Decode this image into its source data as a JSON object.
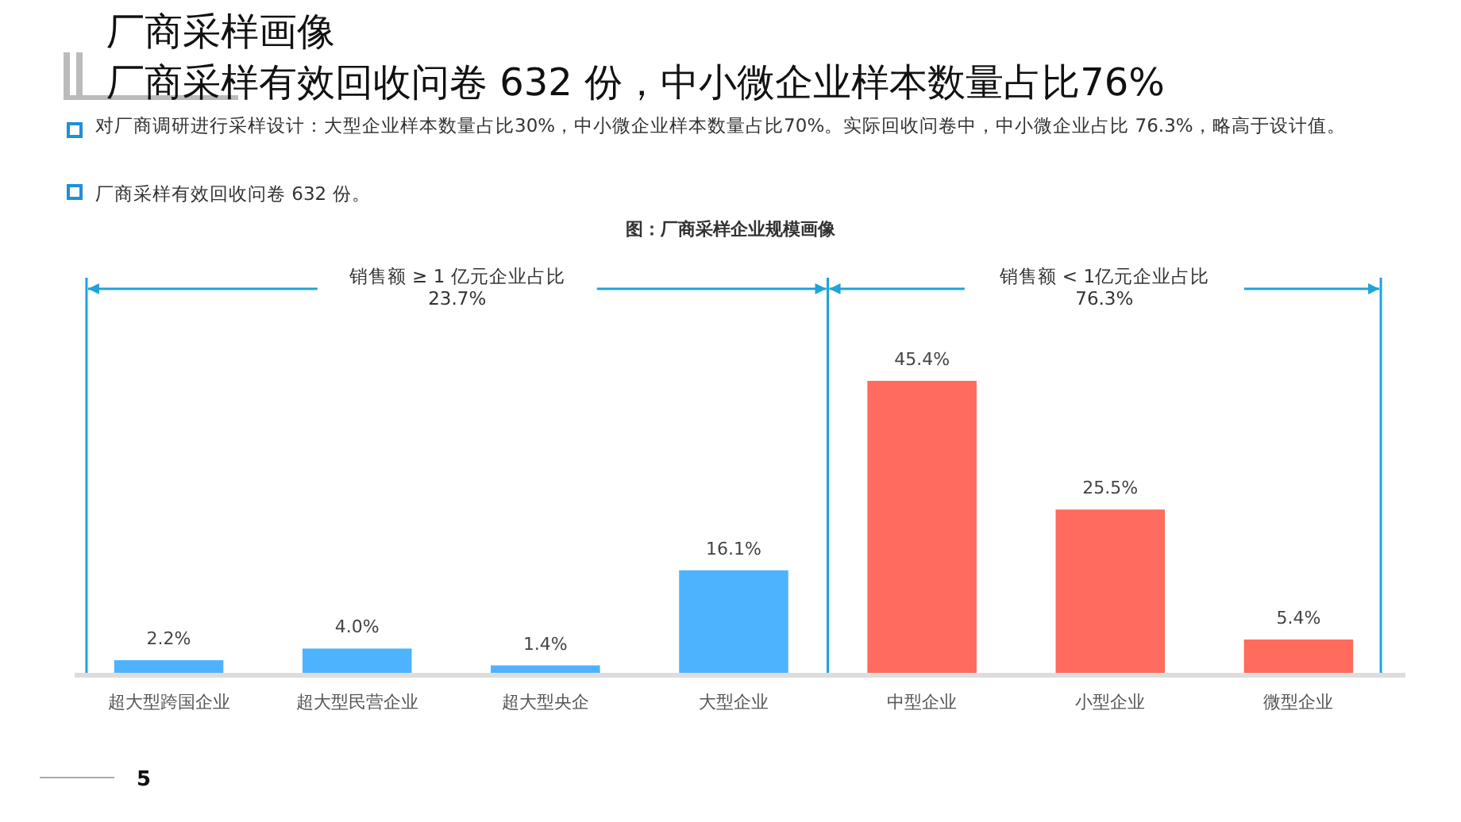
{
  "chart_data": {
    "type": "bar",
    "title": "厂商采样画像",
    "subtitle": "厂商采样有效回收问卷 632 份，中小微企业样本数量占比76%",
    "categories": [
      "超大型跨国企业",
      "超大型民营企业",
      "超大型央企",
      "大型企业",
      "中型企业",
      "小型企业",
      "微型企业"
    ],
    "values": [
      2.2,
      4.0,
      1.4,
      16.1,
      45.4,
      25.5,
      5.4
    ],
    "value_labels": [
      "2.2%",
      "4.0%",
      "1.4%",
      "16.1%",
      "45.4%",
      "25.5%",
      "5.4%"
    ],
    "colors": [
      "#4db3ff",
      "#4db3ff",
      "#4db3ff",
      "#4db3ff",
      "#ff6b5c",
      "#ff6b5c",
      "#ff6b5c"
    ],
    "annotations": [
      "对厂商调研进行采样设计：大型企业样本数量占比30%，中小微企业样本数量占比70%。实际回收问卷中，中小微企业占比 76.3%，略高于设计值。",
      "厂商采样有效回收问卷 632 份。",
      "图：厂商采样企业规模画像",
      "5",
      "销售额 ≥ 1 亿元企业占比\n23.7%",
      "销售额 < 1亿元企业占比\n76.3%"
    ]
  }
}
